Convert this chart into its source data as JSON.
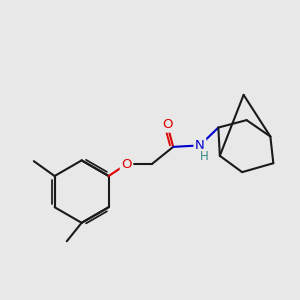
{
  "bg_color": "#e8e8e8",
  "bond_color": "#1a1a1a",
  "bond_lw": 1.5,
  "colors": {
    "O": "#dd0000",
    "N": "#0000cc",
    "H": "#3a8888"
  },
  "font_size": 9.5
}
